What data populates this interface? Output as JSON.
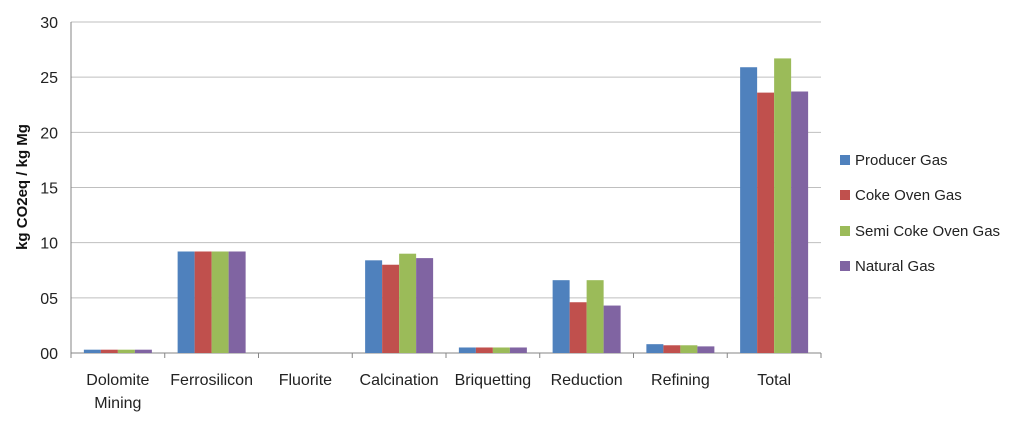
{
  "chart_data": {
    "type": "bar",
    "ylabel": "kg CO2eq / kg Mg",
    "ylim": [
      0,
      30
    ],
    "y_ticks": [
      0,
      5,
      10,
      15,
      20,
      25,
      30
    ],
    "y_tick_labels": [
      "00",
      "05",
      "10",
      "15",
      "20",
      "25",
      "30"
    ],
    "grid": true,
    "legend_position": "right",
    "categories": [
      "Dolomite Mining",
      "Ferrosilicon",
      "Fluorite",
      "Calcination",
      "Briquetting",
      "Reduction",
      "Refining",
      "Total"
    ],
    "category_lines": [
      [
        "Dolomite",
        "Mining"
      ],
      [
        "Ferrosilicon"
      ],
      [
        "Fluorite"
      ],
      [
        "Calcination"
      ],
      [
        "Briquetting"
      ],
      [
        "Reduction"
      ],
      [
        "Refining"
      ],
      [
        "Total"
      ]
    ],
    "series": [
      {
        "name": "Producer Gas",
        "color": "#4F81BD",
        "values": [
          0.3,
          9.2,
          0,
          8.4,
          0.5,
          6.6,
          0.8,
          25.9
        ]
      },
      {
        "name": "Coke Oven Gas",
        "color": "#C0504D",
        "values": [
          0.3,
          9.2,
          0,
          8.0,
          0.5,
          4.6,
          0.7,
          23.6
        ]
      },
      {
        "name": "Semi Coke Oven Gas",
        "color": "#9BBB59",
        "values": [
          0.3,
          9.2,
          0,
          9.0,
          0.5,
          6.6,
          0.7,
          26.7
        ]
      },
      {
        "name": "Natural Gas",
        "color": "#8064A2",
        "values": [
          0.3,
          9.2,
          0,
          8.6,
          0.5,
          4.3,
          0.6,
          23.7
        ]
      }
    ]
  }
}
